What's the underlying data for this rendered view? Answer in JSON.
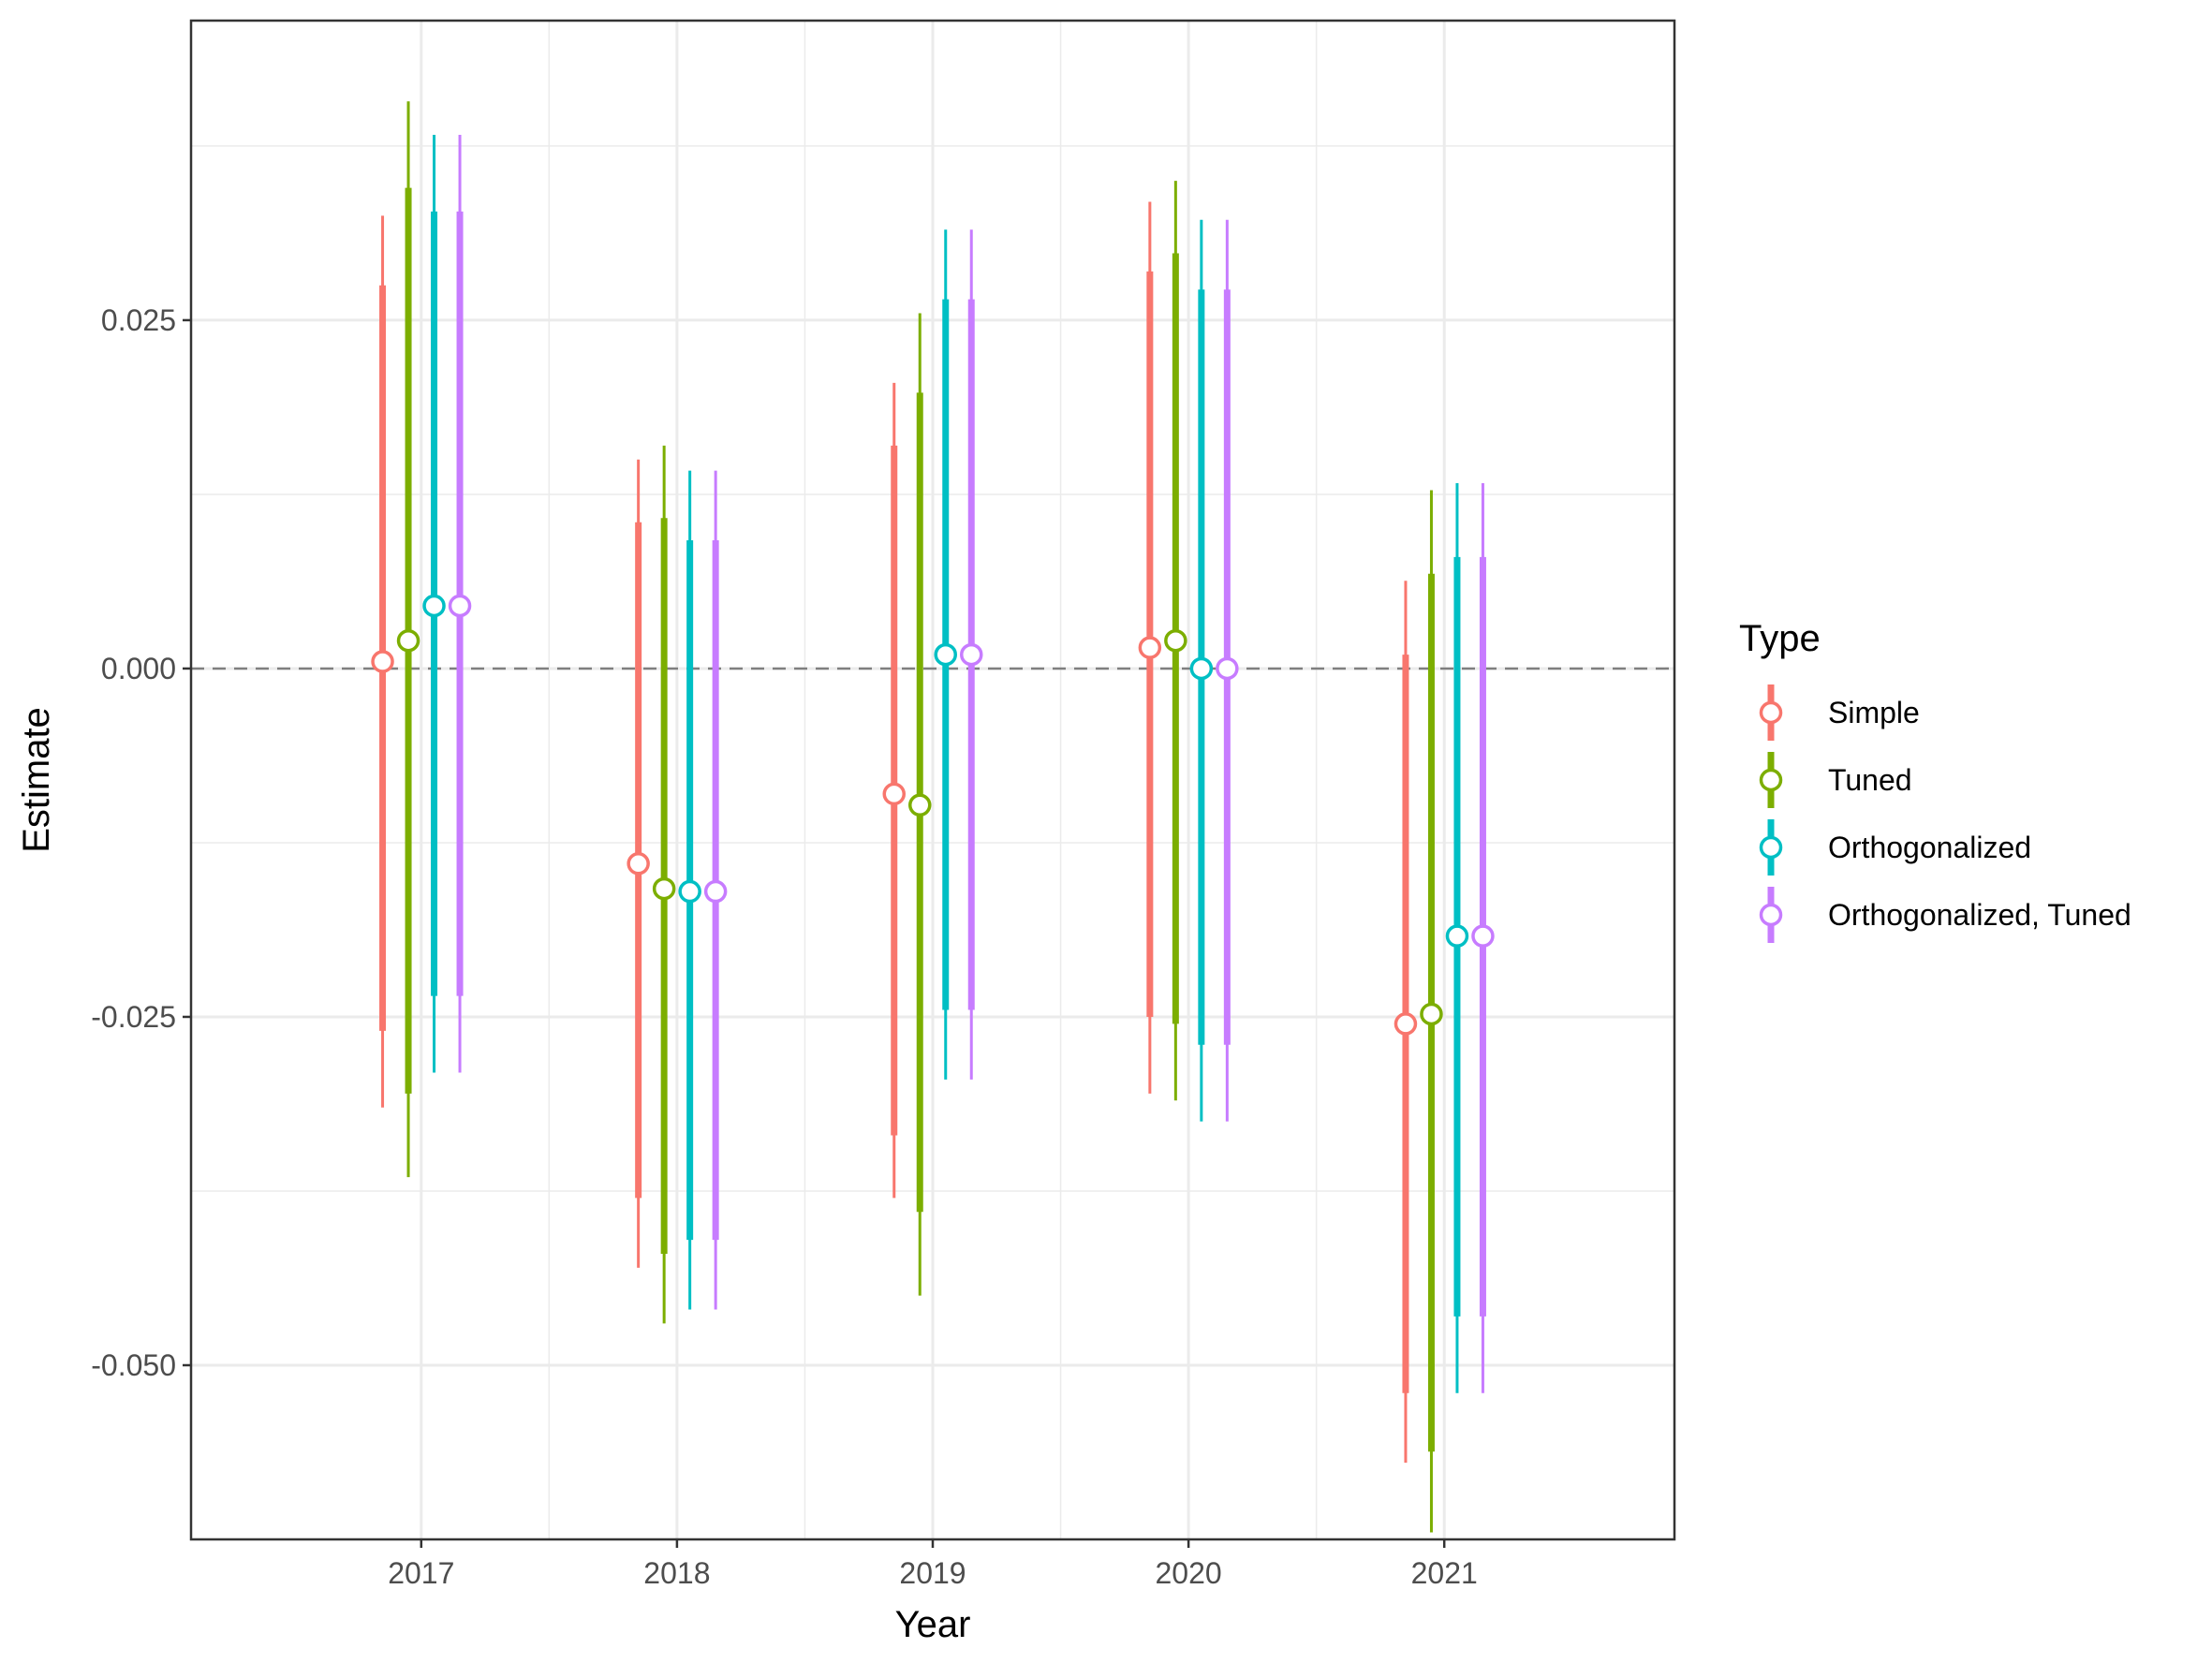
{
  "chart_data": {
    "type": "pointrange",
    "title": "",
    "xlabel": "Year",
    "ylabel": "Estimate",
    "categories": [
      "2017",
      "2018",
      "2019",
      "2020",
      "2021"
    ],
    "ylim": [
      -0.0625,
      0.0465
    ],
    "y_ticks": [
      -0.05,
      -0.025,
      0.0,
      0.025
    ],
    "y_tick_labels": [
      "-0.050",
      "-0.025",
      "0.000",
      "0.025"
    ],
    "reference_line": {
      "y": 0.0,
      "style": "dashed",
      "color": "#7f7f7f"
    },
    "grid": true,
    "legend": {
      "title": "Type",
      "placement": "right"
    },
    "series": [
      {
        "name": "Simple",
        "color": "#F8766D",
        "estimate": [
          0.0005,
          -0.014,
          -0.009,
          0.0015,
          -0.0255
        ],
        "inner_low": [
          -0.026,
          -0.038,
          -0.0335,
          -0.025,
          -0.052
        ],
        "inner_high": [
          0.0275,
          0.0105,
          0.016,
          0.0285,
          0.001
        ],
        "outer_low": [
          -0.0315,
          -0.043,
          -0.038,
          -0.0305,
          -0.057
        ],
        "outer_high": [
          0.0325,
          0.015,
          0.0205,
          0.0335,
          0.0063
        ]
      },
      {
        "name": "Tuned",
        "color": "#7CAE00",
        "estimate": [
          0.002,
          -0.0158,
          -0.0098,
          0.002,
          -0.0248
        ],
        "inner_low": [
          -0.0305,
          -0.042,
          -0.039,
          -0.0255,
          -0.0562
        ],
        "inner_high": [
          0.0345,
          0.0108,
          0.0198,
          0.0298,
          0.0068
        ],
        "outer_low": [
          -0.0365,
          -0.047,
          -0.045,
          -0.031,
          -0.062
        ],
        "outer_high": [
          0.0407,
          0.016,
          0.0255,
          0.035,
          0.0128
        ]
      },
      {
        "name": "Orthogonalized",
        "color": "#00BFC4",
        "estimate": [
          0.0045,
          -0.016,
          0.001,
          0.0,
          -0.0192
        ],
        "inner_low": [
          -0.0235,
          -0.041,
          -0.0245,
          -0.027,
          -0.0465
        ],
        "inner_high": [
          0.0328,
          0.0092,
          0.0265,
          0.0272,
          0.008
        ],
        "outer_low": [
          -0.029,
          -0.046,
          -0.0295,
          -0.0325,
          -0.052
        ],
        "outer_high": [
          0.0383,
          0.0142,
          0.0315,
          0.0322,
          0.0133
        ]
      },
      {
        "name": "Orthogonalized, Tuned",
        "color": "#C77CFF",
        "estimate": [
          0.0045,
          -0.016,
          0.001,
          0.0,
          -0.0192
        ],
        "inner_low": [
          -0.0235,
          -0.041,
          -0.0245,
          -0.027,
          -0.0465
        ],
        "inner_high": [
          0.0328,
          0.0092,
          0.0265,
          0.0272,
          0.008
        ],
        "outer_low": [
          -0.029,
          -0.046,
          -0.0295,
          -0.0325,
          -0.052
        ],
        "outer_high": [
          0.0383,
          0.0142,
          0.0315,
          0.0322,
          0.0133
        ]
      }
    ]
  }
}
